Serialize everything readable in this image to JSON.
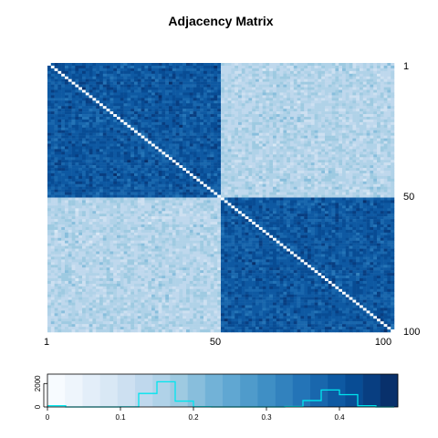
{
  "chart_data": [
    {
      "type": "heatmap",
      "title": "Adjacency Matrix",
      "xlabel": "",
      "ylabel": "",
      "n": 100,
      "blocks": [
        {
          "from": 1,
          "to": 50
        },
        {
          "from": 51,
          "to": 100
        }
      ],
      "within_block_value": 0.4,
      "between_block_value": 0.15,
      "diagonal_value": 0,
      "x_ticks": [
        "1",
        "50",
        "100"
      ],
      "y_ticks": [
        "1",
        "50",
        "100"
      ],
      "grid": false
    },
    {
      "type": "bar",
      "title": "",
      "xlabel": "",
      "ylabel": "",
      "x_ticks": [
        "0",
        "0.1",
        "0.2",
        "0.3",
        "0.4"
      ],
      "y_ticks": [
        "0",
        "2000"
      ],
      "xlim": [
        0,
        0.48
      ],
      "ylim": [
        0,
        2800
      ],
      "color_breaks": [
        0,
        0.024,
        0.048,
        0.072,
        0.096,
        0.12,
        0.144,
        0.168,
        0.192,
        0.216,
        0.24,
        0.264,
        0.288,
        0.312,
        0.336,
        0.36,
        0.384,
        0.408,
        0.432,
        0.456,
        0.48
      ],
      "colors": [
        "#f7fbff",
        "#eef5fc",
        "#e3eef9",
        "#d9e8f5",
        "#cde0f1",
        "#bfd8ed",
        "#b0d2e8",
        "#9ecae1",
        "#88bedc",
        "#72b2d7",
        "#60a7d2",
        "#4f9bcb",
        "#3f8fc5",
        "#3282be",
        "#2474b7",
        "#1967ad",
        "#0e59a2",
        "#084c94",
        "#083e81",
        "#08306b"
      ],
      "histogram": {
        "line_color": "#00e5ee",
        "bin_edges": [
          0,
          0.025,
          0.05,
          0.075,
          0.1,
          0.125,
          0.15,
          0.175,
          0.2,
          0.225,
          0.25,
          0.275,
          0.3,
          0.325,
          0.35,
          0.375,
          0.4,
          0.425,
          0.45,
          0.475
        ],
        "counts": [
          100,
          0,
          0,
          0,
          10,
          1150,
          2150,
          500,
          15,
          0,
          0,
          0,
          0,
          40,
          550,
          1450,
          1050,
          100,
          0
        ]
      }
    }
  ]
}
